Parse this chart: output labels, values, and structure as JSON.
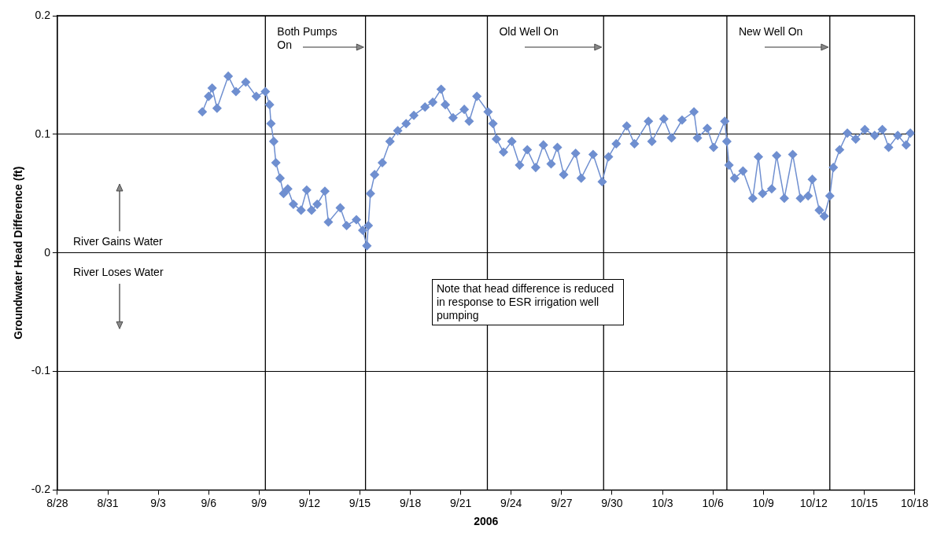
{
  "chart_data": {
    "type": "line",
    "xlabel": "2006",
    "ylabel": "Groundwater Head Difference (ft)",
    "annotations": [
      "River Gains Water",
      "River Loses Water",
      "Note that head difference is reduced in response to ESR irrigation well pumping"
    ],
    "xlim": [
      "2006-08-28",
      "2006-10-18"
    ],
    "xticks": [
      {
        "value": "2006-08-28",
        "label": "8/28"
      },
      {
        "value": "2006-08-31",
        "label": "8/31"
      },
      {
        "value": "2006-09-03",
        "label": "9/3"
      },
      {
        "value": "2006-09-06",
        "label": "9/6"
      },
      {
        "value": "2006-09-09",
        "label": "9/9"
      },
      {
        "value": "2006-09-12",
        "label": "9/12"
      },
      {
        "value": "2006-09-15",
        "label": "9/15"
      },
      {
        "value": "2006-09-18",
        "label": "9/18"
      },
      {
        "value": "2006-09-21",
        "label": "9/21"
      },
      {
        "value": "2006-09-24",
        "label": "9/24"
      },
      {
        "value": "2006-09-27",
        "label": "9/27"
      },
      {
        "value": "2006-09-30",
        "label": "9/30"
      },
      {
        "value": "2006-10-03",
        "label": "10/3"
      },
      {
        "value": "2006-10-06",
        "label": "10/6"
      },
      {
        "value": "2006-10-09",
        "label": "10/9"
      },
      {
        "value": "2006-10-12",
        "label": "10/12"
      },
      {
        "value": "2006-10-15",
        "label": "10/15"
      },
      {
        "value": "2006-10-18",
        "label": "10/18"
      }
    ],
    "ylim": [
      -0.2,
      0.2
    ],
    "yticks": [
      -0.2,
      -0.1,
      0,
      0.1,
      0.2
    ],
    "grid": "y",
    "legend": false,
    "marker": "diamond",
    "line_style": "solid",
    "ref_lines": [
      {
        "axis": "x",
        "value": "2006-09-09T09:00",
        "label": "Both Pumps On"
      },
      {
        "axis": "x",
        "value": "2006-09-15T08:00"
      },
      {
        "axis": "x",
        "value": "2006-09-22T14:00",
        "label": "Old Well On"
      },
      {
        "axis": "x",
        "value": "2006-09-29T12:00"
      },
      {
        "axis": "x",
        "value": "2006-10-06T20:00",
        "label": "New Well On"
      },
      {
        "axis": "x",
        "value": "2006-10-12T23:00"
      }
    ],
    "x": [
      "2006-09-05T15:00",
      "2006-09-06T00:00",
      "2006-09-06T05:00",
      "2006-09-06T12:00",
      "2006-09-07T04:00",
      "2006-09-07T15:00",
      "2006-09-08T05:00",
      "2006-09-08T20:00",
      "2006-09-09T09:00",
      "2006-09-09T15:00",
      "2006-09-09T17:00",
      "2006-09-09T21:00",
      "2006-09-10T00:00",
      "2006-09-10T06:00",
      "2006-09-10T11:00",
      "2006-09-10T17:00",
      "2006-09-11T01:00",
      "2006-09-11T12:00",
      "2006-09-11T20:00",
      "2006-09-12T03:00",
      "2006-09-12T11:00",
      "2006-09-12T22:00",
      "2006-09-13T03:00",
      "2006-09-13T20:00",
      "2006-09-14T05:00",
      "2006-09-14T19:00",
      "2006-09-15T04:00",
      "2006-09-15T10:00",
      "2006-09-15T12:00",
      "2006-09-15T15:00",
      "2006-09-15T21:00",
      "2006-09-16T08:00",
      "2006-09-16T19:00",
      "2006-09-17T06:00",
      "2006-09-17T18:00",
      "2006-09-18T05:00",
      "2006-09-18T21:00",
      "2006-09-19T08:00",
      "2006-09-19T20:00",
      "2006-09-20T02:00",
      "2006-09-20T13:00",
      "2006-09-21T05:00",
      "2006-09-21T12:00",
      "2006-09-21T23:00",
      "2006-09-22T15:00",
      "2006-09-22T22:00",
      "2006-09-23T03:00",
      "2006-09-23T13:00",
      "2006-09-24T01:00",
      "2006-09-24T12:00",
      "2006-09-24T23:00",
      "2006-09-25T11:00",
      "2006-09-25T22:00",
      "2006-09-26T09:00",
      "2006-09-26T18:00",
      "2006-09-27T03:00",
      "2006-09-27T20:00",
      "2006-09-28T04:00",
      "2006-09-28T21:00",
      "2006-09-29T10:00",
      "2006-09-29T19:00",
      "2006-09-30T06:00",
      "2006-09-30T21:00",
      "2006-10-01T08:00",
      "2006-10-02T04:00",
      "2006-10-02T09:00",
      "2006-10-03T02:00",
      "2006-10-03T13:00",
      "2006-10-04T04:00",
      "2006-10-04T21:00",
      "2006-10-05T02:00",
      "2006-10-05T16:00",
      "2006-10-06T01:00",
      "2006-10-06T17:00",
      "2006-10-06T20:00",
      "2006-10-06T23:00",
      "2006-10-07T07:00",
      "2006-10-07T19:00",
      "2006-10-08T09:00",
      "2006-10-08T17:00",
      "2006-10-08T23:00",
      "2006-10-09T12:00",
      "2006-10-09T19:00",
      "2006-10-10T06:00",
      "2006-10-10T18:00",
      "2006-10-11T05:00",
      "2006-10-11T16:00",
      "2006-10-11T22:00",
      "2006-10-12T08:00",
      "2006-10-12T15:00",
      "2006-10-12T23:00",
      "2006-10-13T04:00",
      "2006-10-13T13:00",
      "2006-10-14T00:00",
      "2006-10-14T12:00",
      "2006-10-15T01:00",
      "2006-10-15T15:00",
      "2006-10-16T02:00",
      "2006-10-16T11:00",
      "2006-10-17T00:00",
      "2006-10-17T12:00",
      "2006-10-17T18:00"
    ],
    "series": [
      {
        "color": "#6f8fd0",
        "values": [
          0.119,
          0.132,
          0.139,
          0.122,
          0.149,
          0.136,
          0.144,
          0.132,
          0.136,
          0.125,
          0.109,
          0.094,
          0.076,
          0.063,
          0.05,
          0.054,
          0.041,
          0.036,
          0.053,
          0.036,
          0.041,
          0.052,
          0.026,
          0.038,
          0.023,
          0.028,
          0.019,
          0.006,
          0.023,
          0.05,
          0.066,
          0.076,
          0.094,
          0.103,
          0.109,
          0.116,
          0.123,
          0.127,
          0.138,
          0.125,
          0.114,
          0.121,
          0.111,
          0.132,
          0.119,
          0.109,
          0.096,
          0.085,
          0.094,
          0.074,
          0.087,
          0.072,
          0.091,
          0.075,
          0.089,
          0.066,
          0.084,
          0.063,
          0.083,
          0.06,
          0.081,
          0.092,
          0.107,
          0.092,
          0.111,
          0.094,
          0.113,
          0.097,
          0.112,
          0.119,
          0.097,
          0.105,
          0.089,
          0.111,
          0.094,
          0.074,
          0.063,
          0.069,
          0.046,
          0.081,
          0.05,
          0.054,
          0.082,
          0.046,
          0.083,
          0.046,
          0.048,
          0.062,
          0.036,
          0.031,
          0.048,
          0.072,
          0.087,
          0.101,
          0.096,
          0.104,
          0.099,
          0.104,
          0.089,
          0.099,
          0.091,
          0.101
        ]
      }
    ]
  }
}
